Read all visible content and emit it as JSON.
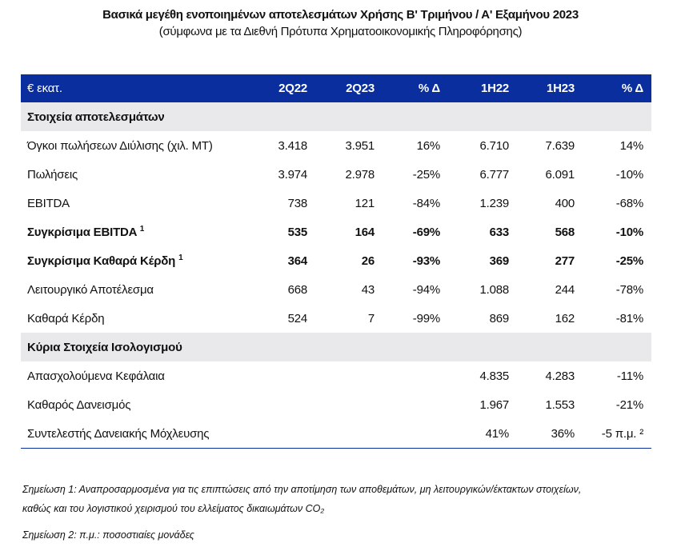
{
  "title": "Βασικά μεγέθη ενοποιημένων αποτελεσμάτων Χρήσης Β' Τριμήνου / Α' Εξαμήνου 2023",
  "subtitle": "(σύμφωνα με τα Διεθνή Πρότυπα Χρηματοοικονομικής Πληροφόρησης)",
  "table": {
    "header": [
      "€ εκατ.",
      "2Q22",
      "2Q23",
      "% Δ",
      "1H22",
      "1H23",
      "% Δ"
    ],
    "sections": [
      {
        "title": "Στοιχεία αποτελεσμάτων",
        "rows": [
          {
            "label": "Όγκοι πωλήσεων Διύλισης (χιλ. ΜΤ)",
            "sup": "",
            "values": [
              "3.418",
              "3.951",
              "16%",
              "6.710",
              "7.639",
              "14%"
            ],
            "bold": false
          },
          {
            "label": "Πωλήσεις",
            "sup": "",
            "values": [
              "3.974",
              "2.978",
              "-25%",
              "6.777",
              "6.091",
              "-10%"
            ],
            "bold": false
          },
          {
            "label": "EBITDA",
            "sup": "",
            "values": [
              "738",
              "121",
              "-84%",
              "1.239",
              "400",
              "-68%"
            ],
            "bold": false
          },
          {
            "label": "Συγκρίσιμα EBITDA",
            "sup": "1",
            "values": [
              "535",
              "164",
              "-69%",
              "633",
              "568",
              "-10%"
            ],
            "bold": true
          },
          {
            "label": "Συγκρίσιμα Καθαρά Κέρδη",
            "sup": "1",
            "values": [
              "364",
              "26",
              "-93%",
              "369",
              "277",
              "-25%"
            ],
            "bold": true
          },
          {
            "label": "Λειτουργικό Αποτέλεσμα",
            "sup": "",
            "values": [
              "668",
              "43",
              "-94%",
              "1.088",
              "244",
              "-78%"
            ],
            "bold": false
          },
          {
            "label": "Καθαρά Κέρδη",
            "sup": "",
            "values": [
              "524",
              "7",
              "-99%",
              "869",
              "162",
              "-81%"
            ],
            "bold": false
          }
        ]
      },
      {
        "title": "Κύρια Στοιχεία Ισολογισμού",
        "rows": [
          {
            "label": "Απασχολούμενα Κεφάλαια",
            "sup": "",
            "values": [
              "",
              "",
              "",
              "4.835",
              "4.283",
              "-11%"
            ],
            "bold": false
          },
          {
            "label": "Καθαρός Δανεισμός",
            "sup": "",
            "values": [
              "",
              "",
              "",
              "1.967",
              "1.553",
              "-21%"
            ],
            "bold": false
          },
          {
            "label": "Συντελεστής Δανειακής Μόχλευσης",
            "sup": "",
            "values": [
              "",
              "",
              "",
              "41%",
              "36%",
              "-5 π.μ. ²"
            ],
            "bold": false
          }
        ]
      }
    ]
  },
  "notes": {
    "note1_line1": "Σημείωση 1: Αναπροσαρμοσμένα για τις επιπτώσεις από την αποτίμηση των αποθεμάτων, μη λειτουργικών/έκτακτων στοιχείων,",
    "note1_line2": "καθώς και του λογιστικού χειρισμού του ελλείματος δικαιωμάτων CO₂",
    "note2": "Σημείωση 2: π.μ.: ποσοστιαίες μονάδες"
  },
  "colors": {
    "header_bg": "#0a2e9e",
    "section_bg": "#e9e9ec"
  }
}
